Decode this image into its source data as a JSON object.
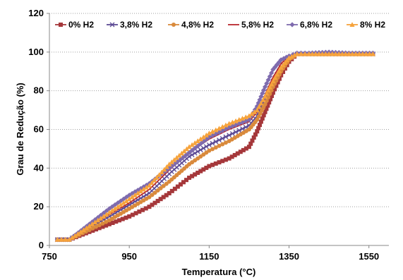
{
  "chart_data": {
    "type": "line",
    "xlabel": "Temperatura (°C)",
    "ylabel": "Grau de Redução (%)",
    "xlim": [
      750,
      1600
    ],
    "ylim": [
      0,
      120
    ],
    "xticks": [
      750,
      950,
      1150,
      1350,
      1550
    ],
    "yticks": [
      0,
      20,
      40,
      60,
      80,
      100,
      120
    ],
    "grid": "horizontal",
    "legend_position": "top",
    "series": [
      {
        "name": "0% H2",
        "color": "#A5373A",
        "marker": "square",
        "x": [
          770,
          800,
          850,
          900,
          950,
          1000,
          1050,
          1100,
          1150,
          1200,
          1250,
          1270,
          1290,
          1310,
          1330,
          1350,
          1370,
          1400,
          1450,
          1500,
          1560
        ],
        "y": [
          3,
          3,
          7,
          11,
          15,
          20,
          27,
          35,
          41,
          45,
          51,
          59,
          69,
          79,
          88,
          95,
          99,
          99,
          99,
          99,
          99
        ]
      },
      {
        "name": "3,8% H2",
        "color": "#5C4A94",
        "marker": "x",
        "x": [
          770,
          800,
          850,
          900,
          950,
          1000,
          1050,
          1100,
          1150,
          1200,
          1250,
          1270,
          1290,
          1310,
          1330,
          1350,
          1370,
          1400,
          1450,
          1500,
          1560
        ],
        "y": [
          3,
          3,
          9,
          15,
          21,
          27,
          37,
          46,
          52,
          57,
          62,
          67,
          76,
          85,
          92,
          97,
          99,
          99,
          99,
          99,
          99
        ]
      },
      {
        "name": "4,8% H2",
        "color": "#D98A3C",
        "marker": "circle",
        "x": [
          770,
          800,
          850,
          900,
          950,
          1000,
          1050,
          1100,
          1150,
          1200,
          1250,
          1270,
          1290,
          1310,
          1330,
          1350,
          1370,
          1400,
          1450,
          1500,
          1560
        ],
        "y": [
          3,
          3,
          8,
          13,
          19,
          25,
          33,
          42,
          49,
          54,
          60,
          65,
          73,
          82,
          90,
          96,
          99,
          99,
          99,
          99,
          99
        ]
      },
      {
        "name": "5,8% H2",
        "color": "#B8272C",
        "marker": "none",
        "x": [
          770,
          800,
          850,
          900,
          950,
          1000,
          1050,
          1100,
          1150,
          1200,
          1250,
          1270,
          1290,
          1310,
          1330,
          1350,
          1370,
          1400,
          1450,
          1500,
          1560
        ],
        "y": [
          3,
          3,
          10,
          16,
          22,
          29,
          39,
          48,
          55,
          60,
          64,
          69,
          78,
          87,
          94,
          98,
          99,
          99,
          99,
          99,
          99
        ]
      },
      {
        "name": "6,8% H2",
        "color": "#7E6BAE",
        "marker": "diamond",
        "x": [
          770,
          800,
          850,
          900,
          950,
          1000,
          1050,
          1100,
          1150,
          1200,
          1250,
          1270,
          1290,
          1310,
          1330,
          1350,
          1370,
          1400,
          1450,
          1500,
          1560
        ],
        "y": [
          3,
          3,
          11,
          19,
          26,
          32,
          40,
          48,
          56,
          61,
          65,
          72,
          82,
          91,
          96,
          98,
          99.5,
          99.5,
          100,
          99.5,
          99.5
        ]
      },
      {
        "name": "8% H2",
        "color": "#F6A33C",
        "marker": "triangle",
        "x": [
          770,
          800,
          850,
          900,
          950,
          1000,
          1050,
          1100,
          1150,
          1200,
          1250,
          1270,
          1290,
          1310,
          1330,
          1350,
          1370,
          1400,
          1450,
          1500,
          1560
        ],
        "y": [
          3,
          3,
          10,
          17,
          24,
          31,
          42,
          51,
          58,
          63,
          67,
          70,
          77,
          85,
          92,
          97,
          99,
          99,
          99,
          99,
          99
        ]
      }
    ]
  }
}
